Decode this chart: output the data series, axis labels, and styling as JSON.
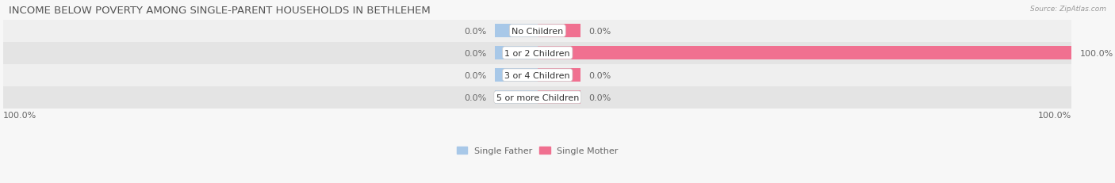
{
  "title": "INCOME BELOW POVERTY AMONG SINGLE-PARENT HOUSEHOLDS IN BETHLEHEM",
  "source": "Source: ZipAtlas.com",
  "categories": [
    "No Children",
    "1 or 2 Children",
    "3 or 4 Children",
    "5 or more Children"
  ],
  "single_father": [
    0.0,
    0.0,
    0.0,
    0.0
  ],
  "single_mother": [
    0.0,
    100.0,
    0.0,
    0.0
  ],
  "father_color": "#a8c8e8",
  "mother_color": "#f07090",
  "row_bg_light": "#efefef",
  "row_bg_dark": "#e4e4e4",
  "title_color": "#555555",
  "source_color": "#999999",
  "text_color": "#666666",
  "label_fontsize": 8.0,
  "title_fontsize": 9.5,
  "bar_height": 0.62,
  "min_bar_width": 8.0,
  "legend_labels": [
    "Single Father",
    "Single Mother"
  ],
  "legend_colors": [
    "#a8c8e8",
    "#f07090"
  ],
  "bottom_left_label": "100.0%",
  "bottom_right_label": "100.0%",
  "x_min": -100,
  "x_max": 100
}
